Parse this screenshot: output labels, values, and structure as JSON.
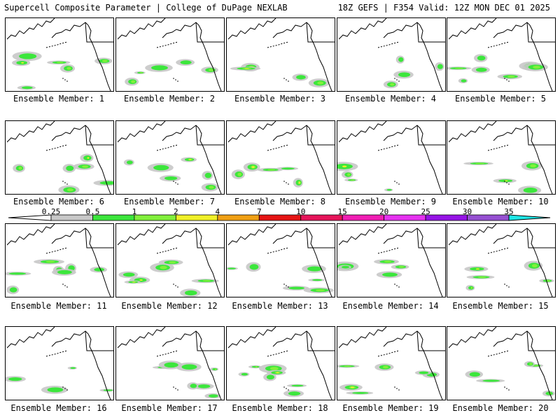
{
  "header": {
    "title_left": "Supercell Composite Parameter | College of DuPage NEXLAB",
    "title_right": "18Z GEFS | F354 Valid: 12Z MON DEC 01 2025"
  },
  "legend": {
    "ticks": [
      "0.25",
      "0.5",
      "1",
      "2",
      "4",
      "7",
      "10",
      "15",
      "20",
      "25",
      "30",
      "35"
    ],
    "colors": [
      "#c8c8c8",
      "#3ce63c",
      "#82f03c",
      "#f0f028",
      "#f0a014",
      "#e61414",
      "#e6145a",
      "#f01eb4",
      "#e632f0",
      "#9614e6",
      "#9650d2"
    ],
    "overflow_color": "#1ee6e6"
  },
  "members": [
    {
      "label": "Ensemble Member: 1"
    },
    {
      "label": "Ensemble Member: 2"
    },
    {
      "label": "Ensemble Member: 3"
    },
    {
      "label": "Ensemble Member: 4"
    },
    {
      "label": "Ensemble Member: 5"
    },
    {
      "label": "Ensemble Member: 6"
    },
    {
      "label": "Ensemble Member: 7"
    },
    {
      "label": "Ensemble Member: 8"
    },
    {
      "label": "Ensemble Member: 9"
    },
    {
      "label": "Ensemble Member: 10"
    },
    {
      "label": "Ensemble Member: 11"
    },
    {
      "label": "Ensemble Member: 12"
    },
    {
      "label": "Ensemble Member: 13"
    },
    {
      "label": "Ensemble Member: 14"
    },
    {
      "label": "Ensemble Member: 15"
    },
    {
      "label": "Ensemble Member: 16"
    },
    {
      "label": "Ensemble Member: 17"
    },
    {
      "label": "Ensemble Member: 18"
    },
    {
      "label": "Ensemble Member: 19"
    },
    {
      "label": "Ensemble Member: 20"
    }
  ]
}
